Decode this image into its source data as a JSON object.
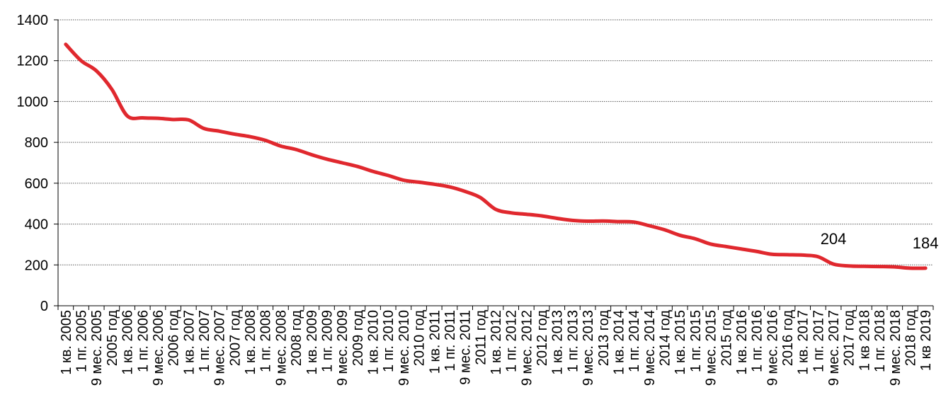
{
  "chart_data": {
    "type": "line",
    "title": "",
    "xlabel": "",
    "ylabel": "",
    "ylim": [
      0,
      1400
    ],
    "yticks": [
      0,
      200,
      400,
      600,
      800,
      1000,
      1200,
      1400
    ],
    "grid": "horizontal-dotted",
    "legend": "none",
    "line_color": "#E0282E",
    "categories": [
      "1 кв. 2005",
      "1 пг. 2005",
      "9 мес. 2005",
      "2005 год",
      "1 кв. 2006",
      "1 пг. 2006",
      "9 мес. 2006",
      "2006 год",
      "1 кв. 2007",
      "1 пг. 2007",
      "9 мес. 2007",
      "2007 год",
      "1 кв. 2008",
      "1 пг. 2008",
      "9 мес. 2008",
      "2008 год",
      "1 кв. 2009",
      "1 пг. 2009",
      "9 мес. 2009",
      "2009 год",
      "1 кв. 2010",
      "1 пг. 2010",
      "9 мес. 2010",
      "2010 год",
      "1 кв. 2011",
      "1 пг. 2011",
      "9 мес. 2011",
      "2011 год",
      "1 кв. 2012",
      "1 пг. 2012",
      "9 мес. 2012",
      "2012 год",
      "1 кв. 2013",
      "1 пг. 2013",
      "9 мес. 2013",
      "2013 год",
      "1 кв. 2014",
      "1 пг. 2014",
      "9 мес. 2014",
      "2014 год",
      "1 кв. 2015",
      "1 пг. 2015",
      "9 мес. 2015",
      "2015 год",
      "1 кв. 2016",
      "1 пг. 2016",
      "9 мес. 2016",
      "2016 год",
      "1 кв. 2017",
      "1 пг. 2017",
      "9 мес. 2017",
      "2017 год",
      "1 кв 2018",
      "1 пг. 2018",
      "9 мес. 2018",
      "2018 год",
      "1 кв 2019"
    ],
    "series": [
      {
        "values": [
          1280,
          1200,
          1150,
          1060,
          930,
          920,
          918,
          912,
          910,
          868,
          855,
          840,
          828,
          810,
          782,
          765,
          740,
          718,
          700,
          682,
          658,
          638,
          615,
          605,
          595,
          582,
          560,
          530,
          472,
          455,
          448,
          440,
          428,
          418,
          414,
          415,
          412,
          410,
          392,
          372,
          345,
          328,
          302,
          290,
          278,
          266,
          252,
          250,
          248,
          240,
          204,
          195,
          193,
          192,
          190,
          184,
          184
        ]
      }
    ],
    "data_labels": [
      {
        "index": 50,
        "text": "204"
      },
      {
        "index": 56,
        "text": "184"
      }
    ]
  }
}
